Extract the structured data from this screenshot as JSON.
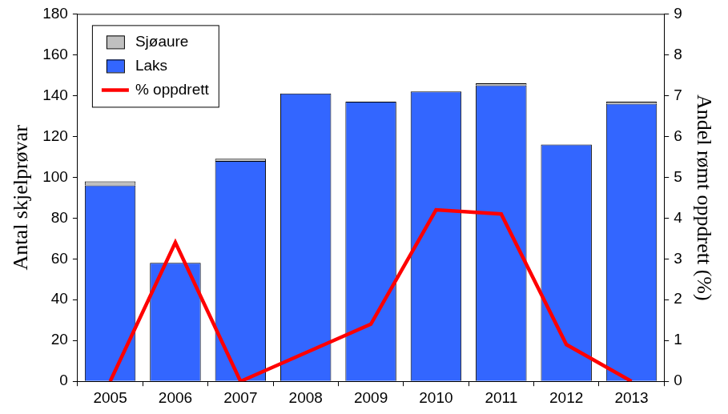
{
  "chart_data": {
    "type": "bar",
    "stacked": true,
    "grid": false,
    "legend": "top-left",
    "categories": [
      "2005",
      "2006",
      "2007",
      "2008",
      "2009",
      "2010",
      "2011",
      "2012",
      "2013"
    ],
    "series": [
      {
        "name": "Sjøaure",
        "color": "#c0c0c0",
        "values": [
          2,
          0,
          1,
          0,
          0,
          0,
          1,
          0,
          1
        ]
      },
      {
        "name": "Laks",
        "color": "#3366ff",
        "values": [
          96,
          58,
          108,
          141,
          137,
          142,
          145,
          116,
          136
        ]
      },
      {
        "name": "% oppdrett",
        "type": "line",
        "color": "#ff0000",
        "axis": "y2",
        "values": [
          0,
          3.4,
          0,
          0.7,
          1.4,
          4.2,
          4.1,
          0.9,
          0
        ]
      }
    ],
    "y_label": "Antal skjelprøvar",
    "y2_label": "Andel rømt oppdrett (%)",
    "ylim": [
      0,
      180
    ],
    "yticks": [
      0,
      20,
      40,
      60,
      80,
      100,
      120,
      140,
      160,
      180
    ],
    "y2lim": [
      0,
      9
    ],
    "y2ticks": [
      0,
      1,
      2,
      3,
      4,
      5,
      6,
      7,
      8,
      9
    ]
  }
}
